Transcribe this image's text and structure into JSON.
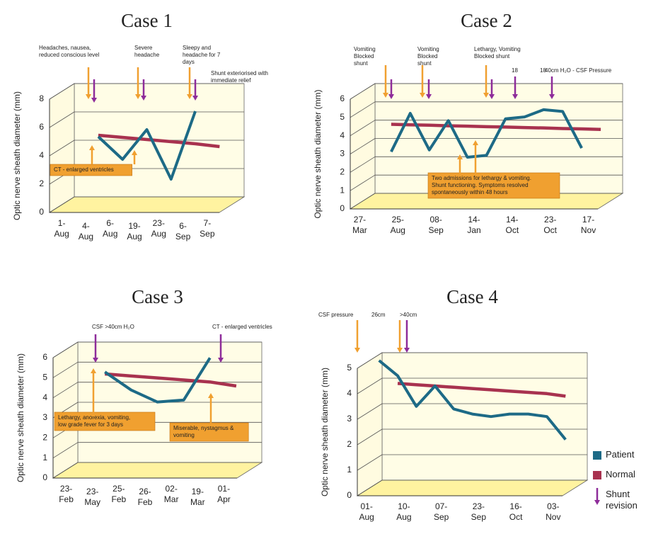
{
  "legend": [
    {
      "name": "Patient",
      "color": "#1d6a86"
    },
    {
      "name": "Normal",
      "color": "#a8324f"
    },
    {
      "name": "Shunt revision",
      "color": "#8e2c9a"
    }
  ],
  "chart_data": [
    {
      "type": "line",
      "title": "Case 1",
      "y_label": "Optic nerve sheath diameter (mm)",
      "categories": [
        "1-Aug",
        "4-Aug",
        "6-Aug",
        "19-Aug",
        "23-Aug",
        "6-Sep",
        "7-Sep"
      ],
      "series": [
        {
          "color": "#1d6a86",
          "values": [
            null,
            4.8,
            3.2,
            5.3,
            1.8,
            6.6,
            null
          ]
        },
        {
          "color": "#a8324f",
          "values": [
            null,
            4.9,
            4.75,
            4.6,
            4.45,
            4.3,
            4.1
          ]
        }
      ],
      "ylim": [
        0,
        8
      ],
      "yticks": [
        0,
        2,
        4,
        6,
        8
      ],
      "annotations": [
        "Headaches, nausea, reduced conscious level",
        "Severe headache",
        "Sleepy and headache for 7 days",
        "Shunt exteriorised with immediate relief",
        "CT - enlarged ventricles"
      ]
    },
    {
      "type": "line",
      "title": "Case 2",
      "y_label": "Optic nerve sheath diameter (mm)",
      "categories": [
        "27-Mar",
        null,
        "25-Aug",
        null,
        "08-Sep",
        null,
        "14-Jan",
        null,
        "14-Oct",
        null,
        "23-Oct",
        null,
        "17-Nov"
      ],
      "series": [
        {
          "color": "#1d6a86",
          "values": [
            null,
            2.7,
            4.8,
            2.8,
            4.4,
            2.4,
            2.5,
            4.5,
            4.6,
            5.0,
            4.9,
            2.9,
            null
          ]
        },
        {
          "color": "#a8324f",
          "values": [
            null,
            4.2,
            4.17,
            4.15,
            4.12,
            4.1,
            4.07,
            4.05,
            4.02,
            4.0,
            3.97,
            3.95,
            3.92
          ]
        }
      ],
      "ylim": [
        0,
        6
      ],
      "yticks": [
        0,
        1,
        2,
        3,
        4,
        5,
        6
      ],
      "annotations": [
        "Vomiting Blocked shunt",
        "Vomiting Blocked shunt",
        "Lethargy, Vomiting Blocked shunt",
        "18",
        "18",
        "40cm H₂O - CSF Pressure",
        "Two admissions for lethargy & vomiting. Shunt functioning. Symptoms resolved spontaneously within 48 hours"
      ]
    },
    {
      "type": "line",
      "title": "Case 3",
      "y_label": "Optic nerve sheath diameter (mm)",
      "categories": [
        "23-Feb",
        "23-May",
        "25-Feb",
        "26-Feb",
        "02-Mar",
        "19-Mar",
        "01-Apr"
      ],
      "series": [
        {
          "color": "#1d6a86",
          "values": [
            null,
            4.9,
            4.0,
            3.4,
            3.5,
            5.6,
            null
          ]
        },
        {
          "color": "#a8324f",
          "values": [
            null,
            4.8,
            4.7,
            4.6,
            4.5,
            4.4,
            4.2
          ]
        }
      ],
      "ylim": [
        0,
        6
      ],
      "yticks": [
        0,
        1,
        2,
        3,
        4,
        5,
        6
      ],
      "annotations": [
        "CSF >40cm H₂O",
        "CT - enlarged ventricles",
        "Lethargy, anorexia, vomiting, low grade fever for 3 days",
        "Miserable, nystagmus & vomiting"
      ]
    },
    {
      "type": "line",
      "title": "Case 4",
      "y_label": "Optic nerve sheath diameter (mm)",
      "categories": [
        "01-Aug",
        null,
        "10-Aug",
        null,
        "07-Sep",
        null,
        "23-Sep",
        null,
        "16-Oct",
        null,
        "03-Nov"
      ],
      "series": [
        {
          "color": "#1d6a86",
          "values": [
            5.0,
            4.4,
            3.2,
            4.0,
            3.1,
            2.9,
            2.8,
            2.9,
            2.9,
            2.8,
            1.9
          ]
        },
        {
          "color": "#a8324f",
          "values": [
            null,
            4.1,
            4.05,
            4.0,
            3.95,
            3.9,
            3.85,
            3.8,
            3.75,
            3.7,
            3.6
          ]
        }
      ],
      "ylim": [
        0,
        5
      ],
      "yticks": [
        0,
        1,
        2,
        3,
        4,
        5
      ],
      "annotations": [
        "CSF pressure",
        "26cm",
        ">40cm"
      ]
    }
  ]
}
